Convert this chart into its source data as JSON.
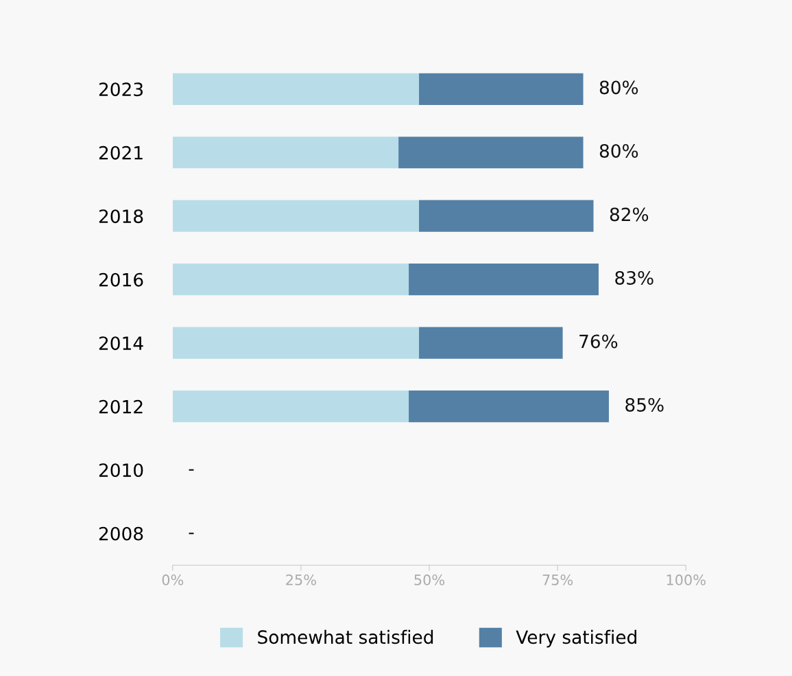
{
  "chart_data": {
    "type": "bar",
    "orientation": "horizontal",
    "stacked": true,
    "categories": [
      "2023",
      "2021",
      "2018",
      "2016",
      "2014",
      "2012",
      "2010",
      "2008"
    ],
    "series": [
      {
        "name": "Somewhat satisfied",
        "color": "#b8dde8",
        "values": [
          48,
          44,
          48,
          46,
          48,
          46,
          null,
          null
        ]
      },
      {
        "name": "Very satisfied",
        "color": "#5480a6",
        "values": [
          32,
          36,
          34,
          37,
          28,
          39,
          null,
          null
        ]
      }
    ],
    "totals": [
      "80%",
      "80%",
      "82%",
      "83%",
      "76%",
      "85%",
      "-",
      "-"
    ],
    "xlim": [
      0,
      100
    ],
    "xticks": [
      {
        "value": 0,
        "label": "0%"
      },
      {
        "value": 25,
        "label": "25%"
      },
      {
        "value": 50,
        "label": "50%"
      },
      {
        "value": 75,
        "label": "75%"
      },
      {
        "value": 100,
        "label": "100%"
      }
    ],
    "grid": false,
    "legend": "bottom"
  }
}
